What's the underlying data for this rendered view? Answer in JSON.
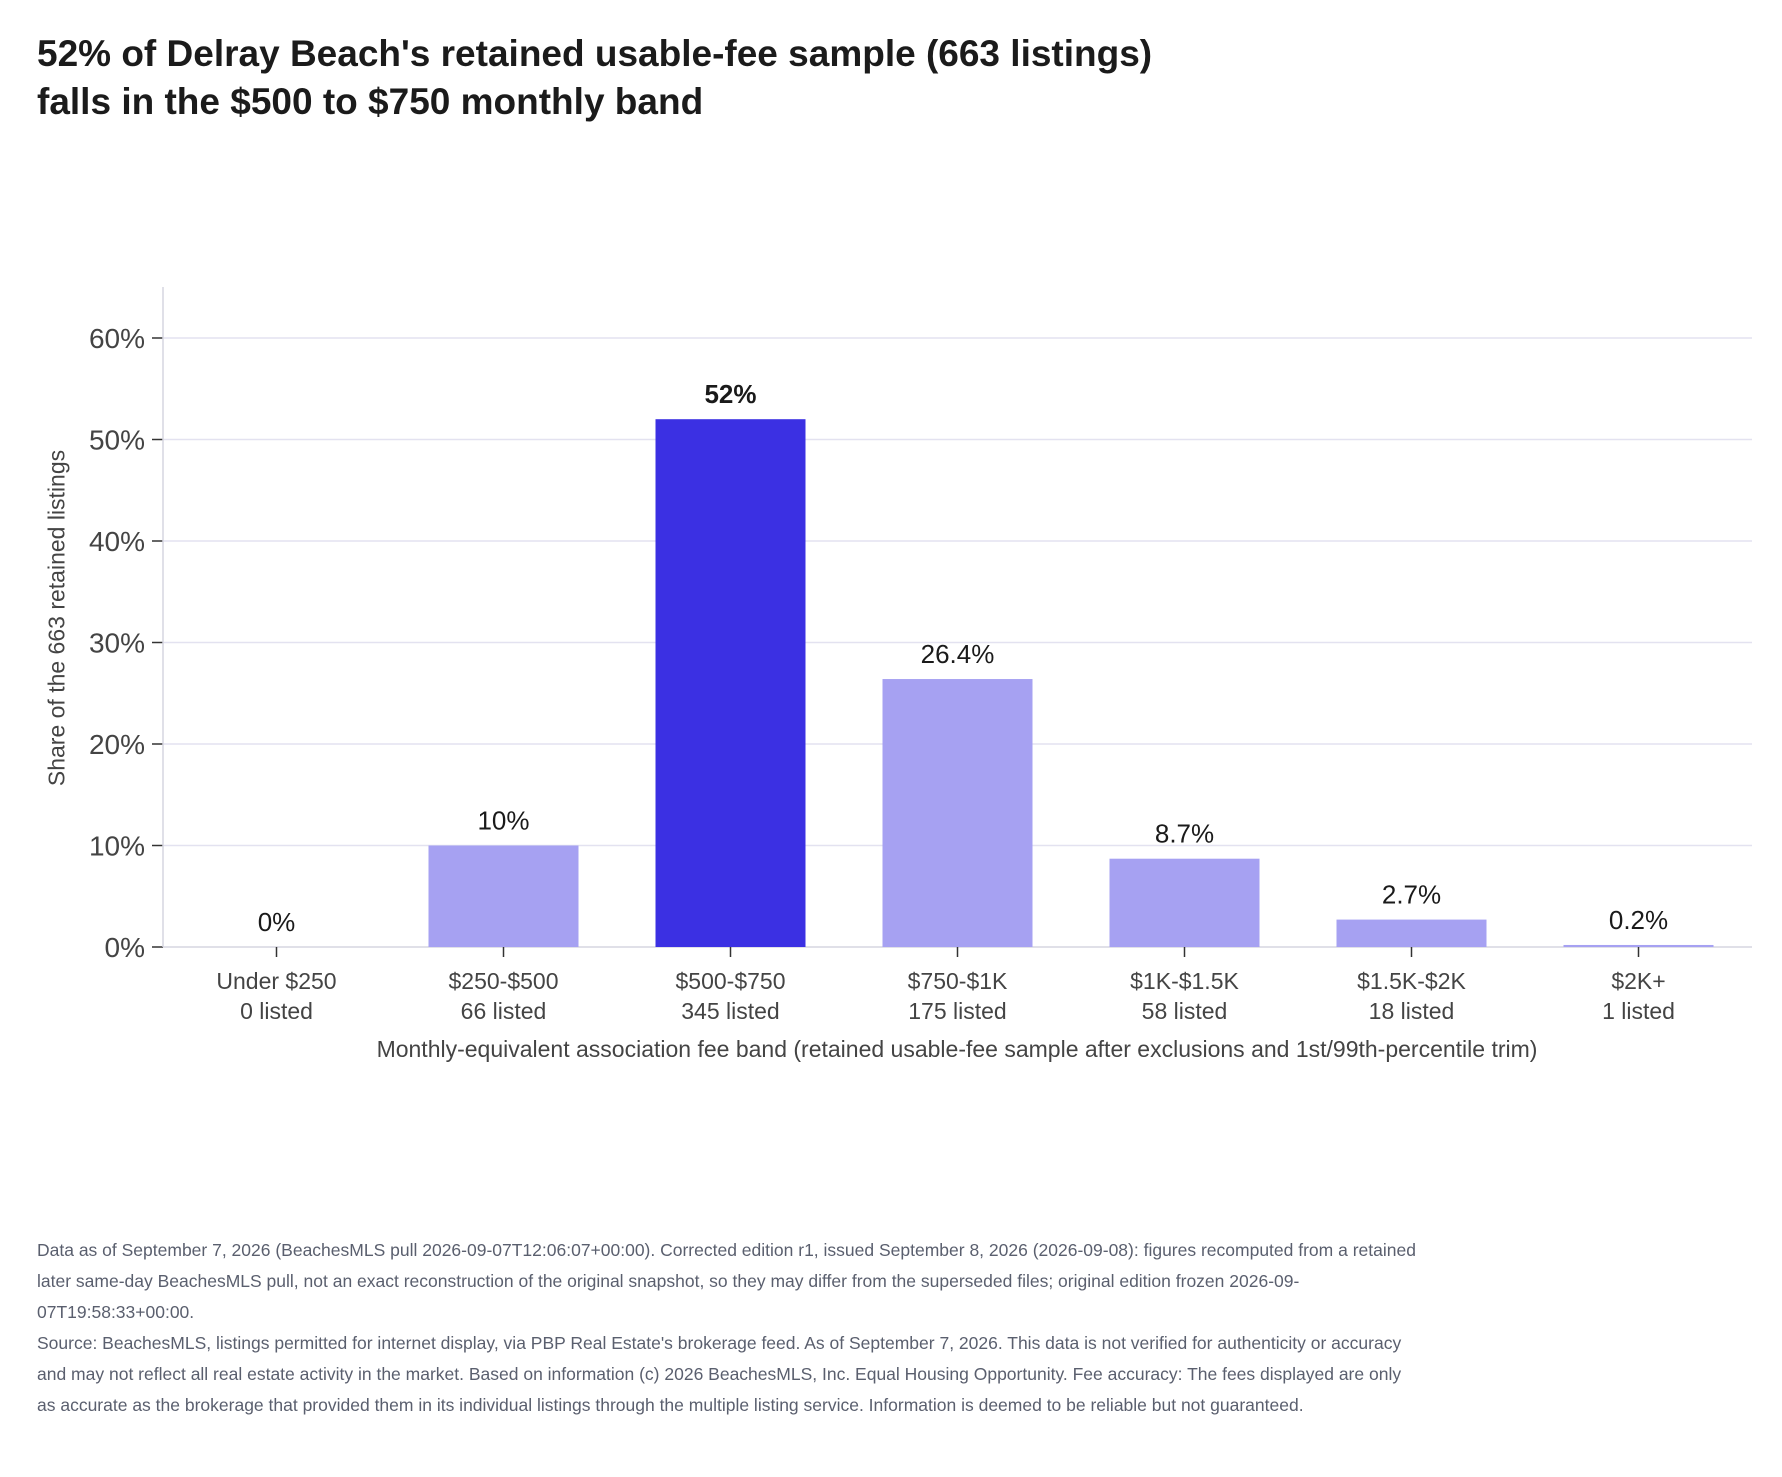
{
  "chart_data": {
    "type": "bar",
    "title_lines": [
      "52% of Delray Beach's retained usable-fee sample (663 listings)",
      "falls in the $500 to $750 monthly band"
    ],
    "categories": [
      "Under $250",
      "$250-$500",
      "$500-$750",
      "$750-$1K",
      "$1K-$1.5K",
      "$1.5K-$2K",
      "$2K+"
    ],
    "counts": [
      "0 listed",
      "66 listed",
      "345 listed",
      "175 listed",
      "58 listed",
      "18 listed",
      "1 listed"
    ],
    "values": [
      0,
      10,
      52,
      26.4,
      8.7,
      2.7,
      0.2
    ],
    "value_labels": [
      "0%",
      "10%",
      "52%",
      "26.4%",
      "8.7%",
      "2.7%",
      "0.2%"
    ],
    "highlight_index": 2,
    "ylim": [
      0,
      65
    ],
    "yticks": [
      0,
      10,
      20,
      30,
      40,
      50,
      60
    ],
    "ytick_labels": [
      "0%",
      "10%",
      "20%",
      "30%",
      "40%",
      "50%",
      "60%"
    ],
    "ylabel": "Share of the 663 retained listings",
    "xlabel": "Monthly-equivalent association fee band (retained usable-fee sample after exclusions and 1st/99th-percentile trim)",
    "grid": true,
    "colors": {
      "highlight": "#3b30e3",
      "bar": "#a6a1f2",
      "grid": "#e3e2f0",
      "axis": "#d6d6e0"
    }
  },
  "notes": {
    "edition": "Data as of September 7, 2026 (BeachesMLS pull 2026-09-07T12:06:07+00:00). Corrected edition r1, issued September 8, 2026 (2026-09-08): figures recomputed from a retained later same-day BeachesMLS pull, not an exact reconstruction of the original snapshot, so they may differ from the superseded files; original edition frozen 2026-09-07T19:58:33+00:00.",
    "source": "Source: BeachesMLS, listings permitted for internet display, via PBP Real Estate's brokerage feed. As of September 7, 2026. This data is not verified for authenticity or accuracy and may not reflect all real estate activity in the market. Based on information (c) 2026 BeachesMLS, Inc. Equal Housing Opportunity. Fee accuracy: The fees displayed are only as accurate as the brokerage that provided them in its individual listings through the multiple listing service. Information is deemed to be reliable but not guaranteed."
  }
}
